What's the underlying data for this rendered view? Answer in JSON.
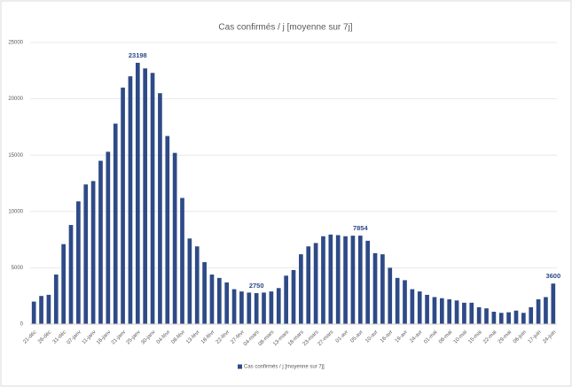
{
  "chart_data": {
    "type": "bar",
    "title": "Cas confirmés / j [moyenne sur 7j]",
    "categories": [
      "21-déc",
      null,
      "26-déc",
      null,
      "31-déc",
      null,
      "07-janv",
      null,
      "11-janv",
      null,
      "16-janv",
      null,
      "21-janv",
      null,
      "25-janv",
      null,
      "30-janv",
      null,
      "04-févr",
      null,
      "08-févr",
      null,
      "13-févr",
      null,
      "18-févr",
      null,
      "22-févr",
      null,
      "27-févr",
      null,
      "04-mars",
      null,
      "08-mars",
      null,
      "13-mars",
      null,
      "18-mars",
      null,
      "23-mars",
      null,
      "27-mars",
      null,
      "01-avr",
      null,
      "05-avr",
      null,
      "10-avr",
      null,
      "16-avr",
      null,
      "19-avr",
      null,
      "24-avr",
      null,
      "01-mai",
      null,
      "06-mai",
      null,
      "10-mai",
      null,
      "15-mai",
      null,
      "22-mai",
      null,
      "29-mai",
      null,
      "06-juin",
      null,
      "17-juin",
      null,
      "24-juin"
    ],
    "series": [
      {
        "name": "Cas confirmés / j [moyenne sur 7j]",
        "color": "#2e4a87",
        "values": [
          2000,
          2500,
          2600,
          4400,
          7100,
          8800,
          10900,
          12400,
          12700,
          14500,
          15300,
          17800,
          21000,
          22000,
          23198,
          22700,
          22300,
          20500,
          16700,
          15200,
          11200,
          7600,
          6900,
          5500,
          4400,
          4100,
          3700,
          3100,
          2900,
          2800,
          2750,
          2800,
          2900,
          3200,
          4300,
          4800,
          6200,
          6900,
          7200,
          7800,
          7950,
          7900,
          7800,
          7850,
          7854,
          7400,
          6300,
          6200,
          5000,
          4100,
          3900,
          3100,
          2900,
          2600,
          2400,
          2300,
          2200,
          2100,
          1900,
          1900,
          1500,
          1400,
          1100,
          1000,
          1050,
          1200,
          1000,
          1500,
          2200,
          2400,
          3600
        ],
        "value_labels": [
          null,
          null,
          null,
          null,
          null,
          null,
          null,
          null,
          null,
          null,
          null,
          null,
          null,
          null,
          "23198",
          null,
          null,
          null,
          null,
          null,
          null,
          null,
          null,
          null,
          null,
          null,
          null,
          null,
          null,
          null,
          "2750",
          null,
          null,
          null,
          null,
          null,
          null,
          null,
          null,
          null,
          null,
          null,
          null,
          null,
          "7854",
          null,
          null,
          null,
          null,
          null,
          null,
          null,
          null,
          null,
          null,
          null,
          null,
          null,
          null,
          null,
          null,
          null,
          null,
          null,
          null,
          null,
          null,
          null,
          null,
          null,
          "3600"
        ]
      }
    ],
    "ylim": [
      0,
      25000
    ],
    "yticks": [
      0,
      5000,
      10000,
      15000,
      20000,
      25000
    ],
    "grid": true,
    "legend": "bottom"
  }
}
